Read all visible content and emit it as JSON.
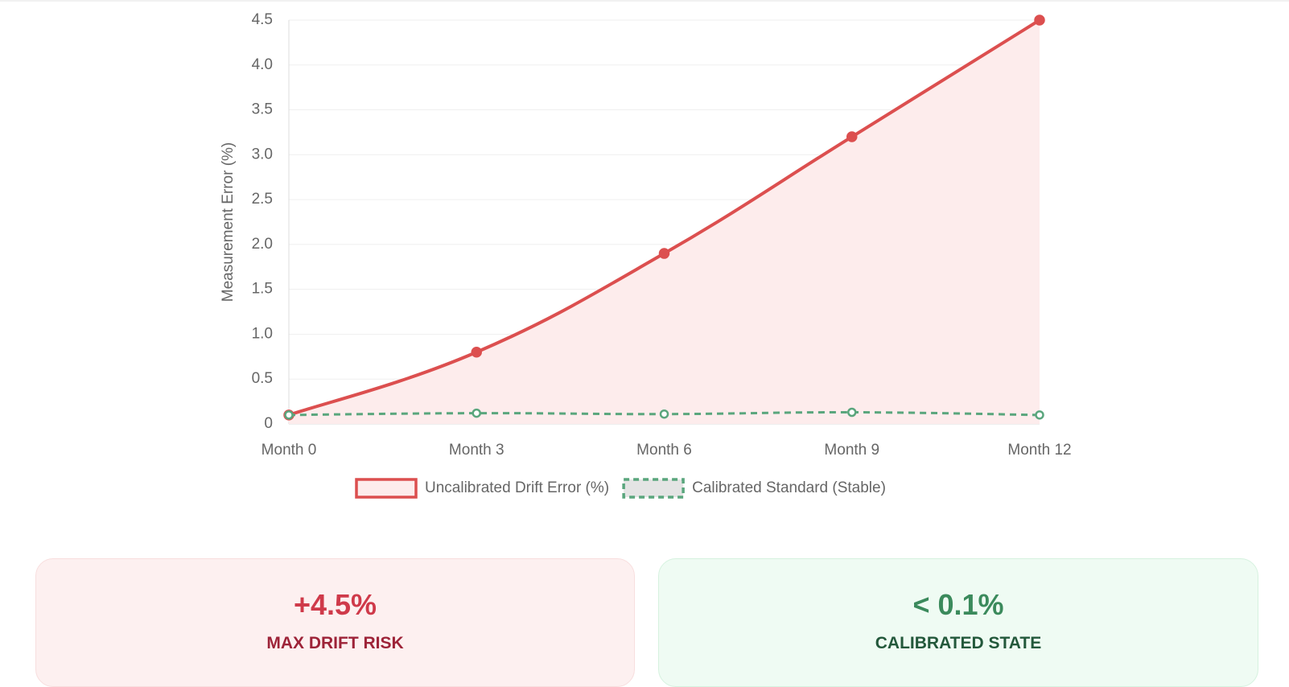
{
  "chart_data": {
    "type": "line",
    "y_label": "Measurement Error (%)",
    "categories": [
      "Month 0",
      "Month 3",
      "Month 6",
      "Month 9",
      "Month 12"
    ],
    "series": [
      {
        "name": "Uncalibrated Drift Error (%)",
        "color": "#dc4f4f",
        "fill": "#fdecec",
        "dashed": false,
        "values": [
          0.1,
          0.8,
          1.9,
          3.2,
          4.5
        ]
      },
      {
        "name": "Calibrated Standard (Stable)",
        "color": "#5aa67d",
        "fill": "#e4e4e4",
        "dashed": true,
        "values": [
          0.1,
          0.12,
          0.11,
          0.13,
          0.1
        ]
      }
    ],
    "ylim": [
      0,
      4.5
    ],
    "yticks": [
      0,
      0.5,
      {
        "value": 1,
        "label": "1.0"
      },
      1.5,
      {
        "value": 2,
        "label": "2.0"
      },
      2.5,
      {
        "value": 3,
        "label": "3.0"
      },
      3.5,
      {
        "value": 4,
        "label": "4.0"
      },
      4.5
    ],
    "grid": true
  },
  "cards": [
    {
      "value": "+4.5%",
      "label": "MAX DRIFT RISK"
    },
    {
      "value": "< 0.1%",
      "label": "CALIBRATED STATE"
    }
  ]
}
